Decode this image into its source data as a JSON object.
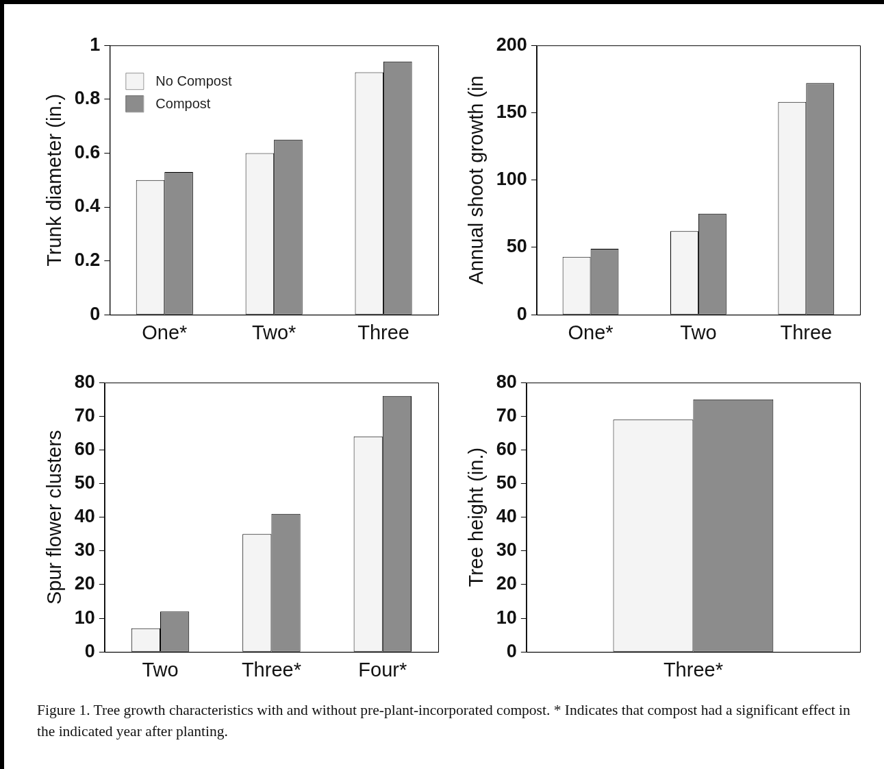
{
  "chart_data": [
    {
      "type": "bar",
      "ylabel": "Trunk diameter (in.)",
      "categories": [
        "One*",
        "Two*",
        "Three"
      ],
      "ylim": [
        0,
        1
      ],
      "yticks": [
        0,
        0.2,
        0.4,
        0.6,
        0.8,
        1
      ],
      "grid": false,
      "legend": "top left",
      "series": [
        {
          "name": "No Compost",
          "color": "#f4f4f4",
          "values": [
            0.5,
            0.6,
            0.9
          ]
        },
        {
          "name": "Compost",
          "color": "#8c8c8c",
          "values": [
            0.53,
            0.65,
            0.94
          ]
        }
      ]
    },
    {
      "type": "bar",
      "ylabel": "Annual shoot growth (in",
      "categories": [
        "One*",
        "Two",
        "Three"
      ],
      "ylim": [
        0,
        200
      ],
      "yticks": [
        0,
        50,
        100,
        150,
        200
      ],
      "grid": false,
      "series": [
        {
          "color": "#f4f4f4",
          "values": [
            43,
            62,
            158
          ]
        },
        {
          "color": "#8c8c8c",
          "values": [
            49,
            75,
            172
          ]
        }
      ]
    },
    {
      "type": "bar",
      "ylabel": "Spur flower clusters",
      "categories": [
        "Two",
        "Three*",
        "Four*"
      ],
      "ylim": [
        0,
        80
      ],
      "yticks": [
        0,
        10,
        20,
        30,
        40,
        50,
        60,
        70,
        80
      ],
      "grid": false,
      "series": [
        {
          "color": "#f4f4f4",
          "values": [
            7,
            35,
            64
          ]
        },
        {
          "color": "#8c8c8c",
          "values": [
            12,
            41,
            76
          ]
        }
      ]
    },
    {
      "type": "bar",
      "ylabel": "Tree height (in.)",
      "categories": [
        "Three*"
      ],
      "ylim": [
        0,
        80
      ],
      "yticks": [
        0,
        10,
        20,
        30,
        40,
        50,
        60,
        70,
        80
      ],
      "grid": false,
      "annotations": [
        "Figure 1.  Tree growth characteristics with and without pre-plant-incorporated compost.  * Indicates that compost had a significant effect in the indicated year after planting."
      ],
      "series": [
        {
          "color": "#f4f4f4",
          "values": [
            69
          ]
        },
        {
          "color": "#8c8c8c",
          "values": [
            75
          ]
        }
      ]
    }
  ]
}
